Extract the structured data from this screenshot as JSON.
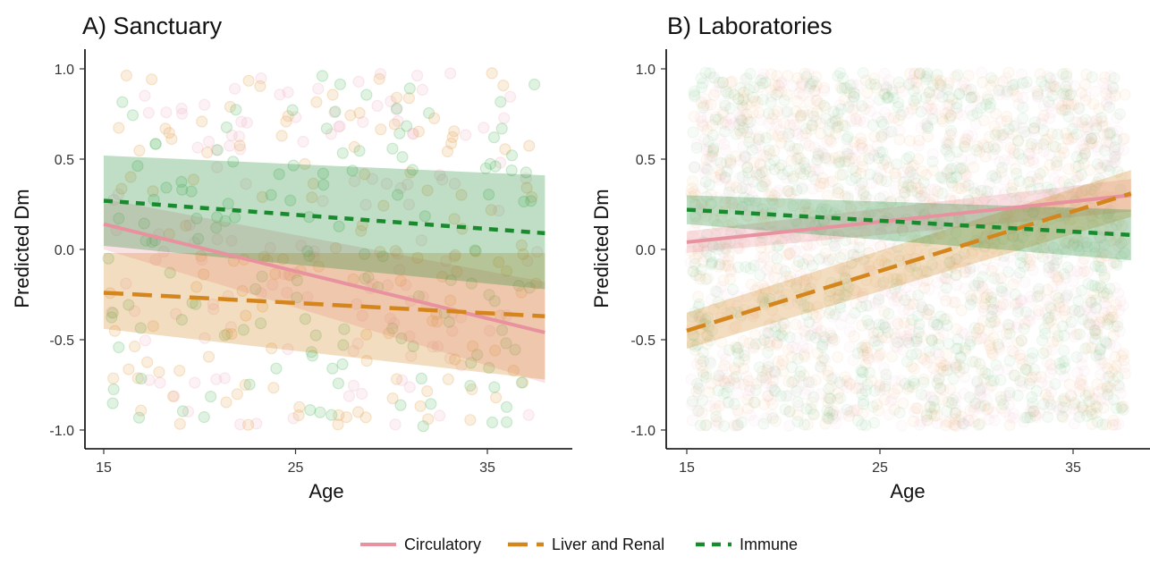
{
  "legend": {
    "items": [
      {
        "label": "Circulatory",
        "color": "#e8929f",
        "dash": "solid"
      },
      {
        "label": "Liver and Renal",
        "color": "#d4861c",
        "dash": "long-dash"
      },
      {
        "label": "Immune",
        "color": "#1a8a2e",
        "dash": "short-dash"
      }
    ]
  },
  "chart_data": [
    {
      "type": "line",
      "title": "A) Sanctuary",
      "xlabel": "Age",
      "ylabel": "Predicted Dm",
      "xlim": [
        15,
        38
      ],
      "ylim": [
        -1.0,
        1.0
      ],
      "x_ticks": [
        15,
        25,
        35
      ],
      "y_ticks": [
        "1.0",
        "0.5",
        "0.0",
        "-0.5",
        "-1.0"
      ],
      "grid": false,
      "legend_position": "bottom",
      "x": [
        15,
        38
      ],
      "series": [
        {
          "name": "Circulatory",
          "color": "#e8929f",
          "values": [
            0.14,
            -0.46
          ],
          "ci_lower": [
            0.0,
            -0.74
          ],
          "ci_upper": [
            0.28,
            -0.18
          ]
        },
        {
          "name": "Liver and Renal",
          "color": "#d4861c",
          "values": [
            -0.24,
            -0.37
          ],
          "ci_lower": [
            -0.44,
            -0.72
          ],
          "ci_upper": [
            -0.02,
            -0.02
          ]
        },
        {
          "name": "Immune",
          "color": "#1a8a2e",
          "values": [
            0.27,
            0.09
          ],
          "ci_lower": [
            0.02,
            -0.22
          ],
          "ci_upper": [
            0.52,
            0.41
          ]
        }
      ],
      "scatter_points_per_series": 140
    },
    {
      "type": "line",
      "title": "B) Laboratories",
      "xlabel": "Age",
      "ylabel": "Predicted Dm",
      "xlim": [
        15,
        38
      ],
      "ylim": [
        -1.0,
        1.0
      ],
      "x_ticks": [
        15,
        25,
        35
      ],
      "y_ticks": [
        "1.0",
        "0.5",
        "0.0",
        "-0.5",
        "-1.0"
      ],
      "grid": false,
      "legend_position": "bottom",
      "x": [
        15,
        38
      ],
      "series": [
        {
          "name": "Circulatory",
          "color": "#e8929f",
          "values": [
            0.04,
            0.3
          ],
          "ci_lower": [
            -0.02,
            0.21
          ],
          "ci_upper": [
            0.1,
            0.39
          ]
        },
        {
          "name": "Liver and Renal",
          "color": "#d4861c",
          "values": [
            -0.45,
            0.31
          ],
          "ci_lower": [
            -0.55,
            0.18
          ],
          "ci_upper": [
            -0.35,
            0.44
          ]
        },
        {
          "name": "Immune",
          "color": "#1a8a2e",
          "values": [
            0.22,
            0.08
          ],
          "ci_lower": [
            0.14,
            -0.06
          ],
          "ci_upper": [
            0.3,
            0.22
          ]
        }
      ],
      "scatter_points_per_series": 900
    }
  ]
}
